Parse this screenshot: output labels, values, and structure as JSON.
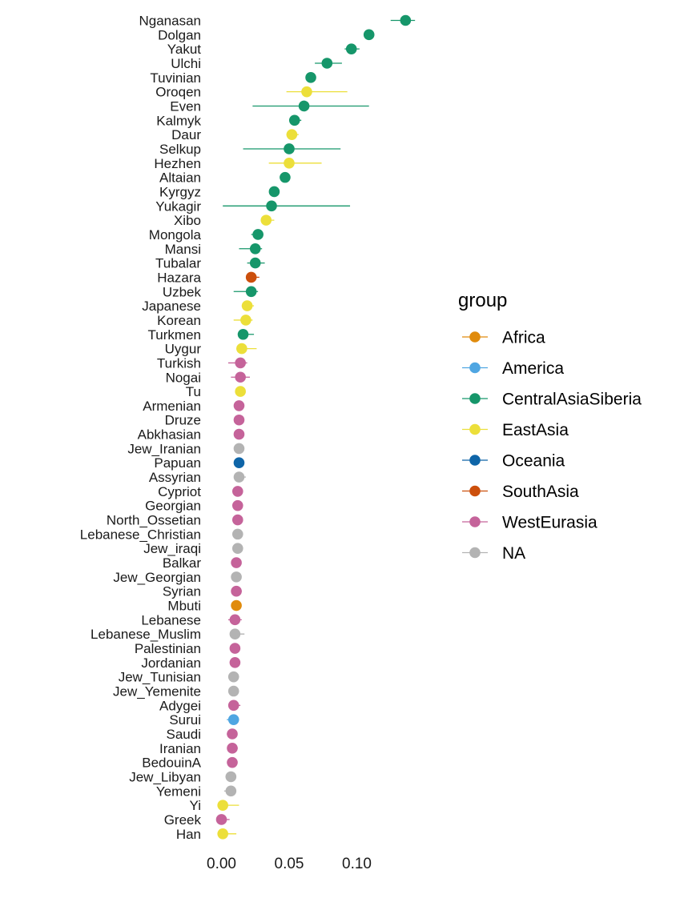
{
  "chart_data": {
    "type": "scatter",
    "subtype": "dot-with-error-bars",
    "orientation": "horizontal",
    "grid": false,
    "xlim": [
      -0.005,
      0.14
    ],
    "xticks": [
      0.0,
      0.05,
      0.1
    ],
    "xtick_labels": [
      "0.00",
      "0.05",
      "0.10"
    ],
    "xlabel": "",
    "ylabel": "",
    "legend": {
      "title": "group",
      "placement": "right",
      "entries": [
        {
          "name": "Africa",
          "color": "#E08B0C"
        },
        {
          "name": "America",
          "color": "#4FA6E2"
        },
        {
          "name": "CentralAsiaSiberia",
          "color": "#16966A"
        },
        {
          "name": "EastAsia",
          "color": "#ECDF3A"
        },
        {
          "name": "Oceania",
          "color": "#0E65A8"
        },
        {
          "name": "SouthAsia",
          "color": "#CC4F0C"
        },
        {
          "name": "WestEurasia",
          "color": "#C5639A"
        },
        {
          "name": "NA",
          "color": "#B3B3B3"
        }
      ]
    },
    "points": [
      {
        "label": "Nganasan",
        "group": "CentralAsiaSiberia",
        "value": 0.136,
        "lo": 0.125,
        "hi": 0.143
      },
      {
        "label": "Dolgan",
        "group": "CentralAsiaSiberia",
        "value": 0.109,
        "lo": 0.109,
        "hi": 0.109
      },
      {
        "label": "Yakut",
        "group": "CentralAsiaSiberia",
        "value": 0.096,
        "lo": 0.091,
        "hi": 0.102
      },
      {
        "label": "Ulchi",
        "group": "CentralAsiaSiberia",
        "value": 0.078,
        "lo": 0.069,
        "hi": 0.089
      },
      {
        "label": "Tuvinian",
        "group": "CentralAsiaSiberia",
        "value": 0.066,
        "lo": 0.064,
        "hi": 0.068
      },
      {
        "label": "Oroqen",
        "group": "EastAsia",
        "value": 0.063,
        "lo": 0.048,
        "hi": 0.093
      },
      {
        "label": "Even",
        "group": "CentralAsiaSiberia",
        "value": 0.061,
        "lo": 0.023,
        "hi": 0.109
      },
      {
        "label": "Kalmyk",
        "group": "CentralAsiaSiberia",
        "value": 0.054,
        "lo": 0.05,
        "hi": 0.059
      },
      {
        "label": "Daur",
        "group": "EastAsia",
        "value": 0.052,
        "lo": 0.048,
        "hi": 0.057
      },
      {
        "label": "Selkup",
        "group": "CentralAsiaSiberia",
        "value": 0.05,
        "lo": 0.016,
        "hi": 0.088
      },
      {
        "label": "Hezhen",
        "group": "EastAsia",
        "value": 0.05,
        "lo": 0.035,
        "hi": 0.074
      },
      {
        "label": "Altaian",
        "group": "CentralAsiaSiberia",
        "value": 0.047,
        "lo": 0.044,
        "hi": 0.05
      },
      {
        "label": "Kyrgyz",
        "group": "CentralAsiaSiberia",
        "value": 0.039,
        "lo": 0.037,
        "hi": 0.041
      },
      {
        "label": "Yukagir",
        "group": "CentralAsiaSiberia",
        "value": 0.037,
        "lo": 0.001,
        "hi": 0.095
      },
      {
        "label": "Xibo",
        "group": "EastAsia",
        "value": 0.033,
        "lo": 0.029,
        "hi": 0.039
      },
      {
        "label": "Mongola",
        "group": "CentralAsiaSiberia",
        "value": 0.027,
        "lo": 0.022,
        "hi": 0.031
      },
      {
        "label": "Mansi",
        "group": "CentralAsiaSiberia",
        "value": 0.025,
        "lo": 0.013,
        "hi": 0.03
      },
      {
        "label": "Tubalar",
        "group": "CentralAsiaSiberia",
        "value": 0.025,
        "lo": 0.019,
        "hi": 0.032
      },
      {
        "label": "Hazara",
        "group": "SouthAsia",
        "value": 0.022,
        "lo": 0.02,
        "hi": 0.028
      },
      {
        "label": "Uzbek",
        "group": "CentralAsiaSiberia",
        "value": 0.022,
        "lo": 0.009,
        "hi": 0.027
      },
      {
        "label": "Japanese",
        "group": "EastAsia",
        "value": 0.019,
        "lo": 0.015,
        "hi": 0.024
      },
      {
        "label": "Korean",
        "group": "EastAsia",
        "value": 0.018,
        "lo": 0.009,
        "hi": 0.023
      },
      {
        "label": "Turkmen",
        "group": "CentralAsiaSiberia",
        "value": 0.016,
        "lo": 0.014,
        "hi": 0.024
      },
      {
        "label": "Uygur",
        "group": "EastAsia",
        "value": 0.015,
        "lo": 0.011,
        "hi": 0.026
      },
      {
        "label": "Turkish",
        "group": "WestEurasia",
        "value": 0.014,
        "lo": 0.005,
        "hi": 0.019
      },
      {
        "label": "Nogai",
        "group": "WestEurasia",
        "value": 0.014,
        "lo": 0.007,
        "hi": 0.021
      },
      {
        "label": "Tu",
        "group": "EastAsia",
        "value": 0.014,
        "lo": 0.012,
        "hi": 0.016
      },
      {
        "label": "Armenian",
        "group": "WestEurasia",
        "value": 0.013,
        "lo": 0.01,
        "hi": 0.016
      },
      {
        "label": "Druze",
        "group": "WestEurasia",
        "value": 0.013,
        "lo": 0.011,
        "hi": 0.016
      },
      {
        "label": "Abkhasian",
        "group": "WestEurasia",
        "value": 0.013,
        "lo": 0.011,
        "hi": 0.015
      },
      {
        "label": "Jew_Iranian",
        "group": "NA",
        "value": 0.013,
        "lo": 0.012,
        "hi": 0.015
      },
      {
        "label": "Papuan",
        "group": "Oceania",
        "value": 0.013,
        "lo": 0.013,
        "hi": 0.013
      },
      {
        "label": "Assyrian",
        "group": "NA",
        "value": 0.013,
        "lo": 0.01,
        "hi": 0.018
      },
      {
        "label": "Cypriot",
        "group": "WestEurasia",
        "value": 0.012,
        "lo": 0.011,
        "hi": 0.014
      },
      {
        "label": "Georgian",
        "group": "WestEurasia",
        "value": 0.012,
        "lo": 0.011,
        "hi": 0.014
      },
      {
        "label": "North_Ossetian",
        "group": "WestEurasia",
        "value": 0.012,
        "lo": 0.011,
        "hi": 0.014
      },
      {
        "label": "Lebanese_Christian",
        "group": "NA",
        "value": 0.012,
        "lo": 0.011,
        "hi": 0.014
      },
      {
        "label": "Jew_iraqi",
        "group": "NA",
        "value": 0.012,
        "lo": 0.011,
        "hi": 0.014
      },
      {
        "label": "Balkar",
        "group": "WestEurasia",
        "value": 0.011,
        "lo": 0.008,
        "hi": 0.014
      },
      {
        "label": "Jew_Georgian",
        "group": "NA",
        "value": 0.011,
        "lo": 0.01,
        "hi": 0.013
      },
      {
        "label": "Syrian",
        "group": "WestEurasia",
        "value": 0.011,
        "lo": 0.009,
        "hi": 0.015
      },
      {
        "label": "Mbuti",
        "group": "Africa",
        "value": 0.011,
        "lo": 0.011,
        "hi": 0.011
      },
      {
        "label": "Lebanese",
        "group": "WestEurasia",
        "value": 0.01,
        "lo": 0.005,
        "hi": 0.015
      },
      {
        "label": "Lebanese_Muslim",
        "group": "NA",
        "value": 0.01,
        "lo": 0.007,
        "hi": 0.017
      },
      {
        "label": "Palestinian",
        "group": "WestEurasia",
        "value": 0.01,
        "lo": 0.008,
        "hi": 0.013
      },
      {
        "label": "Jordanian",
        "group": "WestEurasia",
        "value": 0.01,
        "lo": 0.008,
        "hi": 0.012
      },
      {
        "label": "Jew_Tunisian",
        "group": "NA",
        "value": 0.009,
        "lo": 0.008,
        "hi": 0.011
      },
      {
        "label": "Jew_Yemenite",
        "group": "NA",
        "value": 0.009,
        "lo": 0.008,
        "hi": 0.011
      },
      {
        "label": "Adygei",
        "group": "WestEurasia",
        "value": 0.009,
        "lo": 0.007,
        "hi": 0.014
      },
      {
        "label": "Surui",
        "group": "America",
        "value": 0.009,
        "lo": 0.004,
        "hi": 0.013
      },
      {
        "label": "Saudi",
        "group": "WestEurasia",
        "value": 0.008,
        "lo": 0.004,
        "hi": 0.011
      },
      {
        "label": "Iranian",
        "group": "WestEurasia",
        "value": 0.008,
        "lo": 0.006,
        "hi": 0.012
      },
      {
        "label": "BedouinA",
        "group": "WestEurasia",
        "value": 0.008,
        "lo": 0.006,
        "hi": 0.01
      },
      {
        "label": "Jew_Libyan",
        "group": "NA",
        "value": 0.007,
        "lo": 0.003,
        "hi": 0.01
      },
      {
        "label": "Yemeni",
        "group": "NA",
        "value": 0.007,
        "lo": 0.002,
        "hi": 0.009
      },
      {
        "label": "Yi",
        "group": "EastAsia",
        "value": 0.001,
        "lo": -0.002,
        "hi": 0.013
      },
      {
        "label": "Greek",
        "group": "WestEurasia",
        "value": 0.0,
        "lo": -0.002,
        "hi": 0.006
      },
      {
        "label": "Han",
        "group": "EastAsia",
        "value": 0.001,
        "lo": -0.002,
        "hi": 0.011
      }
    ]
  }
}
